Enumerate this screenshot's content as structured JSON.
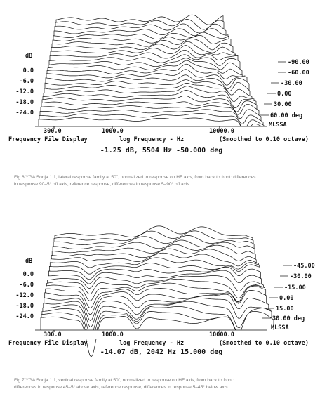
{
  "figures": [
    {
      "y_axis_label": "dB",
      "y_ticks": [
        "0.0",
        "-6.0",
        "-12.0",
        "-18.0",
        "-24.0"
      ],
      "x_ticks": [
        "300.0",
        "1000.0",
        "10000.0"
      ],
      "footer": {
        "left": "Frequency File Display",
        "center": "log Frequency - Hz",
        "right": "(Smoothed to 0.10 octave)"
      },
      "curve_labels": [
        "-90.00",
        "-60.00",
        "-30.00",
        "0.00",
        "30.00",
        "60.00 deg"
      ],
      "brand": "MLSSA",
      "readout": "-1.25 dB, 5504 Hz  -50.000 deg",
      "caption": [
        "Fig.6 YGA Sonja 1.1, lateral response family at 50\", normalized to response on HF axis, from back to front: differences",
        "in response 90–5° off axis, reference response, differences in response 5–90° off axis."
      ]
    },
    {
      "y_axis_label": "dB",
      "y_ticks": [
        "0.0",
        "-6.0",
        "-12.0",
        "-18.0",
        "-24.0"
      ],
      "x_ticks": [
        "300.0",
        "1000.0",
        "10000.0"
      ],
      "footer": {
        "left": "Frequency File Display",
        "center": "log Frequency - Hz",
        "right": "(Smoothed to 0.10 octave)"
      },
      "curve_labels": [
        "-45.00",
        "-30.00",
        "-15.00",
        "0.00",
        "15.00",
        "30.00 deg"
      ],
      "brand": "MLSSA",
      "readout": "-14.07 dB, 2042 Hz  15.000 deg",
      "caption": [
        "Fig.7 YGA Sonja 1.1, vertical response family at 50\", normalized to response on HF axis, from back to front:",
        "differences in response 45–5° above axis, reference response, differences in response 5–45° below axis."
      ]
    }
  ]
}
